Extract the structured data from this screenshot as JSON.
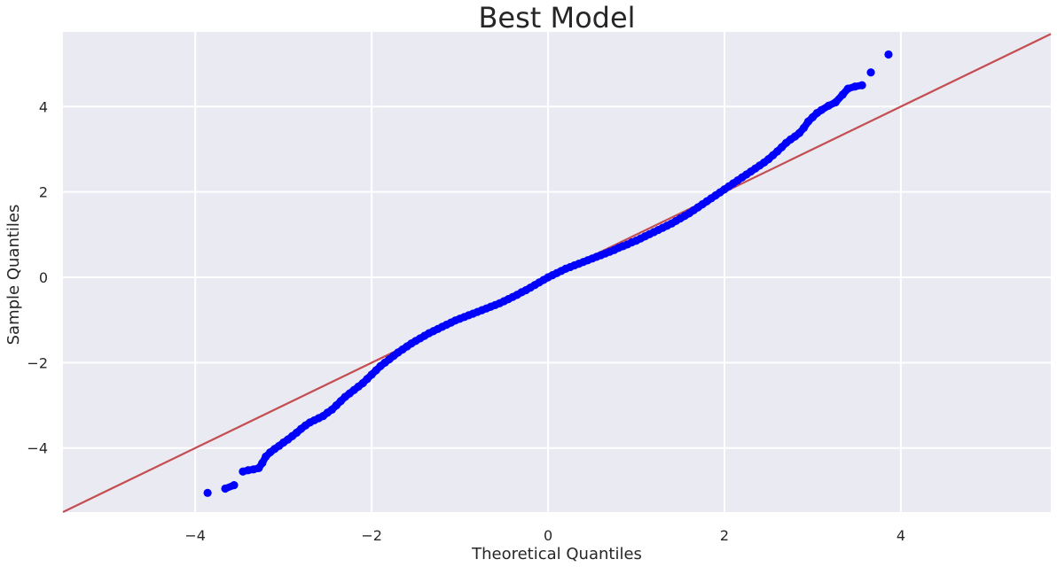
{
  "chart_data": {
    "type": "scatter",
    "title": "Best Model",
    "xlabel": "Theoretical Quantiles",
    "ylabel": "Sample Quantiles",
    "xlim": [
      -5.5,
      5.7
    ],
    "ylim": [
      -5.5,
      5.75
    ],
    "xticks": [
      -4,
      -2,
      0,
      2,
      4
    ],
    "yticks": [
      -4,
      -2,
      0,
      2,
      4
    ],
    "xtick_labels": [
      "−4",
      "−2",
      "0",
      "2",
      "4"
    ],
    "ytick_labels": [
      "−4",
      "−2",
      "0",
      "2",
      "4"
    ],
    "grid": true,
    "colors": {
      "background": "#eaeaf2",
      "grid": "#ffffff",
      "points": "#0000ff",
      "reference_line": "#c44e52"
    },
    "reference_line": {
      "type": "45-degree",
      "x": [
        -5.5,
        5.7
      ],
      "y": [
        -5.5,
        5.7
      ]
    },
    "series": [
      {
        "values": [
          [
            -3.86,
            -5.05
          ],
          [
            -3.66,
            -4.95
          ],
          [
            -3.56,
            -4.87
          ],
          [
            -3.46,
            -4.55
          ],
          [
            -3.4,
            -4.52
          ],
          [
            -3.34,
            -4.5
          ],
          [
            -3.28,
            -4.47
          ],
          [
            -3.24,
            -4.35
          ],
          [
            -3.2,
            -4.2
          ],
          [
            -3.15,
            -4.1
          ],
          [
            -3.1,
            -4.02
          ],
          [
            -3.05,
            -3.95
          ],
          [
            -3.0,
            -3.87
          ],
          [
            -2.95,
            -3.8
          ],
          [
            -2.9,
            -3.72
          ],
          [
            -2.85,
            -3.64
          ],
          [
            -2.8,
            -3.55
          ],
          [
            -2.75,
            -3.47
          ],
          [
            -2.7,
            -3.4
          ],
          [
            -2.65,
            -3.35
          ],
          [
            -2.6,
            -3.3
          ],
          [
            -2.55,
            -3.25
          ],
          [
            -2.5,
            -3.17
          ],
          [
            -2.45,
            -3.1
          ],
          [
            -2.4,
            -3.0
          ],
          [
            -2.35,
            -2.9
          ],
          [
            -2.3,
            -2.8
          ],
          [
            -2.25,
            -2.72
          ],
          [
            -2.2,
            -2.64
          ],
          [
            -2.15,
            -2.56
          ],
          [
            -2.1,
            -2.48
          ],
          [
            -2.05,
            -2.38
          ],
          [
            -2.0,
            -2.28
          ],
          [
            -1.95,
            -2.18
          ],
          [
            -1.9,
            -2.08
          ],
          [
            -1.85,
            -2.0
          ],
          [
            -1.8,
            -1.92
          ],
          [
            -1.75,
            -1.84
          ],
          [
            -1.7,
            -1.76
          ],
          [
            -1.65,
            -1.69
          ],
          [
            -1.6,
            -1.62
          ],
          [
            -1.55,
            -1.55
          ],
          [
            -1.5,
            -1.49
          ],
          [
            -1.45,
            -1.43
          ],
          [
            -1.4,
            -1.37
          ],
          [
            -1.35,
            -1.31
          ],
          [
            -1.3,
            -1.26
          ],
          [
            -1.25,
            -1.21
          ],
          [
            -1.2,
            -1.16
          ],
          [
            -1.15,
            -1.11
          ],
          [
            -1.1,
            -1.06
          ],
          [
            -1.05,
            -1.01
          ],
          [
            -1.0,
            -0.97
          ],
          [
            -0.95,
            -0.93
          ],
          [
            -0.9,
            -0.89
          ],
          [
            -0.85,
            -0.85
          ],
          [
            -0.8,
            -0.81
          ],
          [
            -0.75,
            -0.77
          ],
          [
            -0.7,
            -0.73
          ],
          [
            -0.65,
            -0.69
          ],
          [
            -0.6,
            -0.65
          ],
          [
            -0.55,
            -0.61
          ],
          [
            -0.5,
            -0.56
          ],
          [
            -0.45,
            -0.51
          ],
          [
            -0.4,
            -0.46
          ],
          [
            -0.35,
            -0.41
          ],
          [
            -0.3,
            -0.35
          ],
          [
            -0.25,
            -0.3
          ],
          [
            -0.2,
            -0.24
          ],
          [
            -0.15,
            -0.18
          ],
          [
            -0.1,
            -0.12
          ],
          [
            -0.05,
            -0.06
          ],
          [
            0.0,
            0.0
          ],
          [
            0.05,
            0.05
          ],
          [
            0.1,
            0.1
          ],
          [
            0.15,
            0.15
          ],
          [
            0.2,
            0.2
          ],
          [
            0.25,
            0.24
          ],
          [
            0.3,
            0.28
          ],
          [
            0.35,
            0.32
          ],
          [
            0.4,
            0.36
          ],
          [
            0.45,
            0.4
          ],
          [
            0.5,
            0.44
          ],
          [
            0.55,
            0.48
          ],
          [
            0.6,
            0.52
          ],
          [
            0.65,
            0.56
          ],
          [
            0.7,
            0.6
          ],
          [
            0.75,
            0.64
          ],
          [
            0.8,
            0.69
          ],
          [
            0.85,
            0.73
          ],
          [
            0.9,
            0.77
          ],
          [
            0.95,
            0.82
          ],
          [
            1.0,
            0.86
          ],
          [
            1.05,
            0.91
          ],
          [
            1.1,
            0.96
          ],
          [
            1.15,
            1.01
          ],
          [
            1.2,
            1.06
          ],
          [
            1.25,
            1.11
          ],
          [
            1.3,
            1.16
          ],
          [
            1.35,
            1.21
          ],
          [
            1.4,
            1.26
          ],
          [
            1.45,
            1.32
          ],
          [
            1.5,
            1.38
          ],
          [
            1.55,
            1.44
          ],
          [
            1.6,
            1.5
          ],
          [
            1.65,
            1.57
          ],
          [
            1.7,
            1.64
          ],
          [
            1.75,
            1.71
          ],
          [
            1.8,
            1.78
          ],
          [
            1.85,
            1.85
          ],
          [
            1.9,
            1.92
          ],
          [
            1.95,
            1.99
          ],
          [
            2.0,
            2.06
          ],
          [
            2.05,
            2.13
          ],
          [
            2.1,
            2.2
          ],
          [
            2.15,
            2.27
          ],
          [
            2.2,
            2.34
          ],
          [
            2.25,
            2.41
          ],
          [
            2.3,
            2.48
          ],
          [
            2.35,
            2.55
          ],
          [
            2.4,
            2.62
          ],
          [
            2.45,
            2.69
          ],
          [
            2.5,
            2.77
          ],
          [
            2.55,
            2.86
          ],
          [
            2.6,
            2.95
          ],
          [
            2.65,
            3.05
          ],
          [
            2.7,
            3.15
          ],
          [
            2.75,
            3.23
          ],
          [
            2.8,
            3.3
          ],
          [
            2.85,
            3.38
          ],
          [
            2.9,
            3.5
          ],
          [
            2.95,
            3.65
          ],
          [
            3.0,
            3.75
          ],
          [
            3.05,
            3.85
          ],
          [
            3.1,
            3.92
          ],
          [
            3.18,
            4.02
          ],
          [
            3.26,
            4.1
          ],
          [
            3.34,
            4.28
          ],
          [
            3.4,
            4.42
          ],
          [
            3.48,
            4.47
          ],
          [
            3.56,
            4.5
          ],
          [
            3.66,
            4.8
          ],
          [
            3.86,
            5.22
          ]
        ]
      }
    ]
  }
}
